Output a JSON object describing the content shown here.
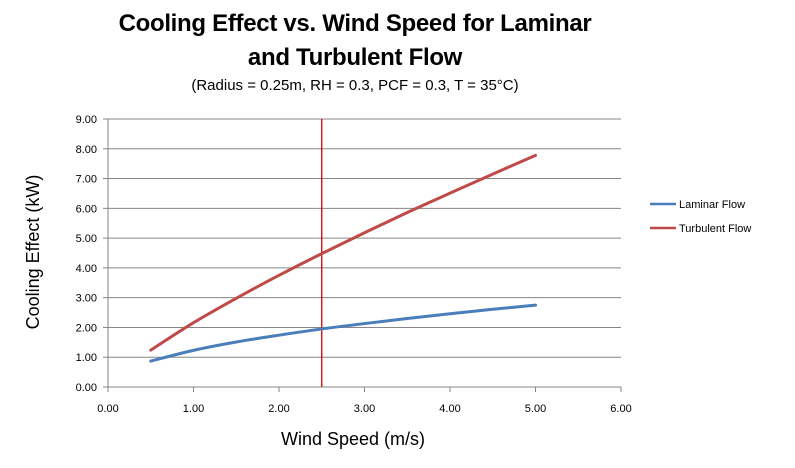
{
  "chart_data": {
    "type": "line",
    "title_line1": "Cooling Effect vs. Wind Speed for Laminar",
    "title_line2": "and Turbulent Flow",
    "subtitle": "(Radius = 0.25m, RH = 0.3, PCF = 0.3, T = 35°C)",
    "xlabel": "Wind Speed  (m/s)",
    "ylabel": "Cooling Effect  (kW)",
    "xlim": [
      0,
      6
    ],
    "ylim": [
      0,
      9
    ],
    "x_ticks": [
      "0.00",
      "1.00",
      "2.00",
      "3.00",
      "4.00",
      "5.00",
      "6.00"
    ],
    "y_ticks": [
      "0.00",
      "1.00",
      "2.00",
      "3.00",
      "4.00",
      "5.00",
      "6.00",
      "7.00",
      "8.00",
      "9.00"
    ],
    "grid": "horizontal",
    "legend_position": "right",
    "x": [
      0.5,
      1.0,
      1.5,
      2.0,
      2.5,
      3.0,
      3.5,
      4.0,
      4.5,
      5.0
    ],
    "series": [
      {
        "name": "Laminar Flow",
        "color": "#4a7ebb",
        "values": [
          0.87,
          1.23,
          1.51,
          1.74,
          1.95,
          2.13,
          2.3,
          2.46,
          2.61,
          2.75
        ]
      },
      {
        "name": "Turbulent Flow",
        "color": "#be4b48",
        "values": [
          1.24,
          2.16,
          2.98,
          3.75,
          4.48,
          5.18,
          5.86,
          6.51,
          7.15,
          7.78
        ]
      }
    ],
    "vertical_marker": {
      "x": 2.5,
      "color": "#cc0000"
    }
  }
}
